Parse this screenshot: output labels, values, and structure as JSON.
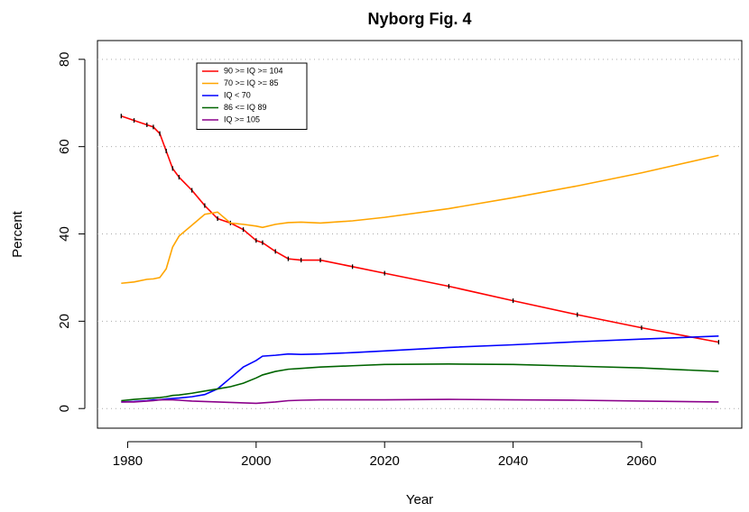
{
  "chart_data": {
    "type": "line",
    "title": "Nyborg Fig. 4",
    "xlabel": "Year",
    "ylabel": "Percent",
    "x": [
      1979,
      1981,
      1983,
      1984,
      1985,
      1986,
      1987,
      1988,
      1990,
      1992,
      1994,
      1996,
      1998,
      2000,
      2001,
      2003,
      2005,
      2007,
      2010,
      2015,
      2020,
      2030,
      2040,
      2050,
      2060,
      2072
    ],
    "series": [
      {
        "name": "90 >= IQ >= 104",
        "color": "#ff0000",
        "marker_color": "#000000",
        "values": [
          67,
          66,
          65,
          64.5,
          63,
          59,
          55,
          53,
          50,
          46.5,
          43.5,
          42.5,
          41,
          38.5,
          38,
          36,
          34.3,
          34,
          34,
          32.5,
          31,
          28,
          24.7,
          21.5,
          18.5,
          15.2
        ]
      },
      {
        "name": "70 >= IQ >= 85",
        "color": "#ffa500",
        "values": [
          28.7,
          29,
          29.6,
          29.7,
          30,
          32,
          37,
          39.5,
          42,
          44.5,
          45,
          42.5,
          42.2,
          41.8,
          41.5,
          42.2,
          42.6,
          42.7,
          42.5,
          43,
          43.8,
          45.8,
          48.3,
          51,
          54,
          58
        ]
      },
      {
        "name": "IQ < 70",
        "color": "#0000ff",
        "values": [
          1.5,
          1.6,
          1.8,
          2,
          2,
          2.2,
          2.3,
          2.4,
          2.7,
          3.2,
          4.5,
          7,
          9.5,
          11,
          12,
          12.2,
          12.5,
          12.4,
          12.5,
          12.8,
          13.2,
          14,
          14.6,
          15.3,
          15.9,
          16.6
        ]
      },
      {
        "name": "86 <= IQ 89",
        "color": "#006400",
        "values": [
          1.8,
          2.1,
          2.3,
          2.4,
          2.5,
          2.7,
          3,
          3.1,
          3.5,
          4,
          4.5,
          5,
          5.8,
          7,
          7.7,
          8.5,
          9,
          9.2,
          9.5,
          9.8,
          10.1,
          10.2,
          10.1,
          9.7,
          9.3,
          8.5
        ]
      },
      {
        "name": "IQ >= 105",
        "color": "#8b008b",
        "values": [
          1.5,
          1.5,
          1.7,
          1.8,
          2,
          2,
          2,
          1.9,
          1.7,
          1.6,
          1.5,
          1.4,
          1.3,
          1.2,
          1.3,
          1.5,
          1.8,
          1.9,
          2,
          2,
          2,
          2.1,
          2,
          1.9,
          1.7,
          1.5
        ]
      }
    ],
    "xlim": [
      1975.3,
      2075.6
    ],
    "ylim": [
      -4.5,
      84.3
    ],
    "xticks": [
      1980,
      2000,
      2020,
      2040,
      2060
    ],
    "yticks": [
      0,
      20,
      40,
      60,
      80
    ],
    "grid": true,
    "legend": "top-left"
  }
}
